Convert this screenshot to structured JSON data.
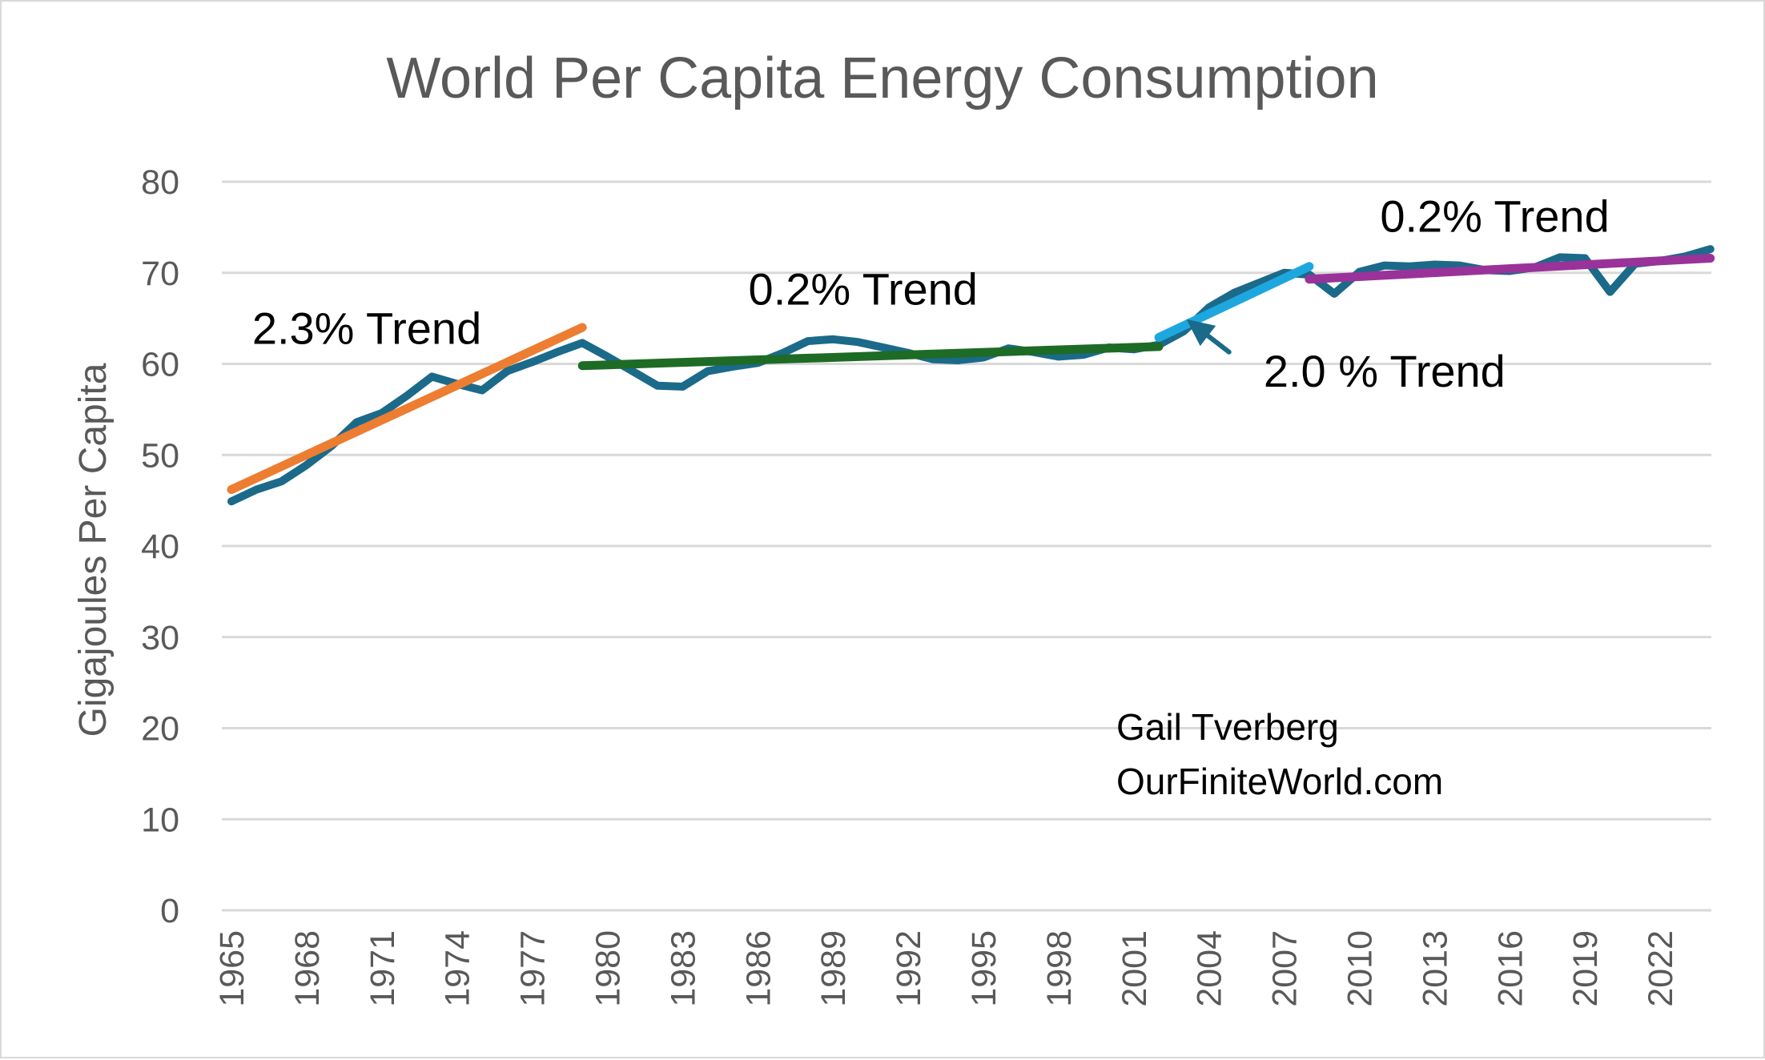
{
  "colors": {
    "data_series": "#1b6a8a",
    "trend_1965_1979": "#ed7d31",
    "trend_1979_2002": "#1e6b26",
    "trend_2002_2008": "#1ea7df",
    "trend_2008_2024": "#993399",
    "arrow": "#1b6a8a",
    "grid": "#d9d9d9"
  },
  "chart_data": {
    "type": "line",
    "title": "World Per Capita Energy Consumption",
    "xlabel": "",
    "ylabel": "Gigajoules Per Capita",
    "ylim": [
      0,
      80
    ],
    "yticks": [
      0,
      10,
      20,
      30,
      40,
      50,
      60,
      70,
      80
    ],
    "xlim": [
      1965,
      2024
    ],
    "xticks": [
      "1965",
      "1968",
      "1971",
      "1974",
      "1977",
      "1980",
      "1983",
      "1986",
      "1989",
      "1992",
      "1995",
      "1998",
      "2001",
      "2004",
      "2007",
      "2010",
      "2013",
      "2016",
      "2019",
      "2022"
    ],
    "grid": "horizontal",
    "legend": "none",
    "x": [
      1965,
      1966,
      1967,
      1968,
      1969,
      1970,
      1971,
      1972,
      1973,
      1974,
      1975,
      1976,
      1977,
      1978,
      1979,
      1980,
      1981,
      1982,
      1983,
      1984,
      1985,
      1986,
      1987,
      1988,
      1989,
      1990,
      1991,
      1992,
      1993,
      1994,
      1995,
      1996,
      1997,
      1998,
      1999,
      2000,
      2001,
      2002,
      2003,
      2004,
      2005,
      2006,
      2007,
      2008,
      2009,
      2010,
      2011,
      2012,
      2013,
      2014,
      2015,
      2016,
      2017,
      2018,
      2019,
      2020,
      2021,
      2022,
      2023,
      2024
    ],
    "series": [
      {
        "values": [
          44.9,
          46.2,
          47.1,
          48.9,
          51.0,
          53.6,
          54.6,
          56.5,
          58.6,
          57.8,
          57.1,
          59.2,
          60.2,
          61.3,
          62.3,
          60.8,
          59.2,
          57.6,
          57.5,
          59.2,
          59.7,
          60.1,
          61.2,
          62.5,
          62.7,
          62.4,
          61.8,
          61.2,
          60.5,
          60.4,
          60.7,
          61.7,
          61.3,
          60.8,
          61.0,
          61.8,
          61.6,
          62.1,
          63.6,
          66.2,
          67.8,
          68.9,
          70.0,
          69.8,
          67.7,
          70.1,
          70.8,
          70.7,
          70.9,
          70.8,
          70.3,
          70.2,
          70.6,
          71.7,
          71.6,
          67.9,
          71.0,
          71.3,
          71.8,
          72.6
        ]
      }
    ],
    "trends": [
      {
        "x": [
          1965,
          1979
        ],
        "y": [
          46.2,
          64.0
        ]
      },
      {
        "x": [
          1979,
          2002
        ],
        "y": [
          59.8,
          61.9
        ]
      },
      {
        "x": [
          2002,
          2008
        ],
        "y": [
          62.9,
          70.7
        ]
      },
      {
        "x": [
          2008,
          2024
        ],
        "y": [
          69.3,
          71.6
        ]
      }
    ],
    "annotations": [
      {
        "text": "2.3% Trend",
        "x": 1970.4,
        "y": 62.2
      },
      {
        "text": "0.2% Trend",
        "x": 1990.2,
        "y": 66.5
      },
      {
        "text": "0.2%  Trend",
        "x": 2015.4,
        "y": 74.5
      },
      {
        "text": "2.0 % Trend",
        "x": 2011.0,
        "y": 57.5
      }
    ],
    "arrow": {
      "from": [
        2004.8,
        61.3
      ],
      "to": [
        2003.1,
        64.9
      ]
    },
    "credit": [
      "Gail Tverberg",
      "OurFiniteWorld.com"
    ]
  }
}
